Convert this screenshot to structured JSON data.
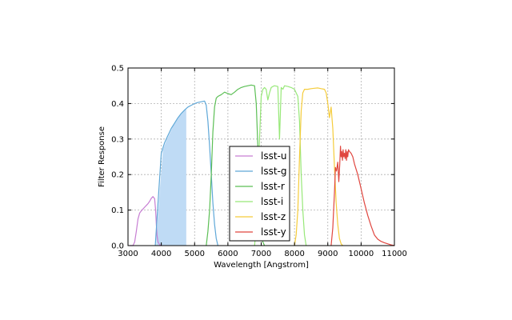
{
  "chart_data": {
    "type": "line",
    "title": "",
    "xlabel": "Wavelength [Angstrom]",
    "ylabel": "Filter Response",
    "xlim": [
      3000,
      11000
    ],
    "ylim": [
      0,
      0.5
    ],
    "xticks": [
      "3000",
      "4000",
      "5000",
      "6000",
      "7000",
      "8000",
      "9000",
      "10000",
      "11000"
    ],
    "yticks": [
      "0.0",
      "0.1",
      "0.2",
      "0.3",
      "0.4",
      "0.5"
    ],
    "grid": true,
    "legend_position": "lower-center",
    "shaded_region": {
      "color": "#bfdbf5",
      "x": [
        3850,
        3950,
        4050,
        4150,
        4250,
        4350,
        4450,
        4550,
        4650,
        4750
      ],
      "y": [
        0.02,
        0.15,
        0.27,
        0.295,
        0.315,
        0.335,
        0.35,
        0.365,
        0.375,
        0.385
      ]
    },
    "series": [
      {
        "name": "lsst-u",
        "color": "#c77ed3",
        "x": [
          3050,
          3150,
          3200,
          3250,
          3300,
          3350,
          3400,
          3450,
          3500,
          3550,
          3600,
          3650,
          3700,
          3750,
          3800,
          3830,
          3850,
          3870,
          3900,
          3950,
          4000
        ],
        "y": [
          0.0,
          0.0,
          0.01,
          0.04,
          0.075,
          0.092,
          0.098,
          0.103,
          0.108,
          0.113,
          0.118,
          0.125,
          0.133,
          0.138,
          0.132,
          0.1,
          0.06,
          0.03,
          0.01,
          0.003,
          0.0
        ]
      },
      {
        "name": "lsst-g",
        "color": "#5fa8d8",
        "x": [
          3820,
          3900,
          4000,
          4100,
          4200,
          4300,
          4400,
          4500,
          4600,
          4700,
          4800,
          4900,
          5000,
          5100,
          5200,
          5300,
          5350,
          5400,
          5450,
          5500,
          5550,
          5600,
          5650,
          5700
        ],
        "y": [
          0.0,
          0.12,
          0.26,
          0.29,
          0.31,
          0.33,
          0.345,
          0.36,
          0.372,
          0.382,
          0.39,
          0.395,
          0.4,
          0.403,
          0.405,
          0.407,
          0.395,
          0.35,
          0.28,
          0.2,
          0.12,
          0.06,
          0.02,
          0.0
        ]
      },
      {
        "name": "lsst-r",
        "color": "#5cbf55",
        "x": [
          5350,
          5400,
          5450,
          5500,
          5550,
          5600,
          5650,
          5700,
          5800,
          5900,
          6000,
          6100,
          6200,
          6300,
          6400,
          6500,
          6600,
          6700,
          6800,
          6850,
          6900,
          6950,
          7000,
          7050,
          7100
        ],
        "y": [
          0.0,
          0.04,
          0.1,
          0.2,
          0.32,
          0.39,
          0.415,
          0.42,
          0.425,
          0.432,
          0.428,
          0.425,
          0.432,
          0.44,
          0.445,
          0.448,
          0.45,
          0.452,
          0.45,
          0.4,
          0.28,
          0.12,
          0.04,
          0.01,
          0.0
        ]
      },
      {
        "name": "lsst-i",
        "color": "#97e878",
        "x": [
          6800,
          6850,
          6900,
          6950,
          7000,
          7050,
          7100,
          7150,
          7200,
          7250,
          7300,
          7350,
          7400,
          7500,
          7550,
          7600,
          7650,
          7700,
          7800,
          7900,
          8000,
          8100,
          8150,
          8200,
          8250,
          8300,
          8350
        ],
        "y": [
          0.0,
          0.05,
          0.15,
          0.3,
          0.42,
          0.44,
          0.445,
          0.44,
          0.41,
          0.43,
          0.445,
          0.448,
          0.45,
          0.448,
          0.3,
          0.445,
          0.44,
          0.45,
          0.448,
          0.445,
          0.44,
          0.42,
          0.35,
          0.2,
          0.1,
          0.03,
          0.0
        ]
      },
      {
        "name": "lsst-z",
        "color": "#f5cc3b",
        "x": [
          8000,
          8050,
          8100,
          8150,
          8200,
          8250,
          8300,
          8400,
          8500,
          8600,
          8700,
          8800,
          8900,
          8950,
          9000,
          9050,
          9100,
          9150,
          9200,
          9250,
          9300,
          9350,
          9400,
          9450
        ],
        "y": [
          0.0,
          0.03,
          0.1,
          0.25,
          0.38,
          0.43,
          0.44,
          0.44,
          0.442,
          0.443,
          0.444,
          0.442,
          0.44,
          0.43,
          0.4,
          0.36,
          0.39,
          0.33,
          0.22,
          0.12,
          0.06,
          0.02,
          0.005,
          0.0
        ]
      },
      {
        "name": "lsst-y",
        "color": "#e0463f",
        "x": [
          9100,
          9150,
          9200,
          9230,
          9260,
          9300,
          9330,
          9360,
          9380,
          9400,
          9420,
          9440,
          9460,
          9480,
          9500,
          9520,
          9540,
          9560,
          9580,
          9600,
          9620,
          9650,
          9700,
          9750,
          9800,
          9900,
          10000,
          10100,
          10200,
          10300,
          10400,
          10500,
          10600,
          10700,
          10800,
          10900,
          11000
        ],
        "y": [
          0.0,
          0.05,
          0.15,
          0.22,
          0.21,
          0.235,
          0.18,
          0.23,
          0.28,
          0.25,
          0.265,
          0.24,
          0.27,
          0.25,
          0.26,
          0.245,
          0.27,
          0.24,
          0.265,
          0.25,
          0.27,
          0.265,
          0.26,
          0.25,
          0.23,
          0.2,
          0.16,
          0.12,
          0.085,
          0.055,
          0.03,
          0.018,
          0.012,
          0.008,
          0.005,
          0.002,
          0.0
        ]
      }
    ]
  }
}
